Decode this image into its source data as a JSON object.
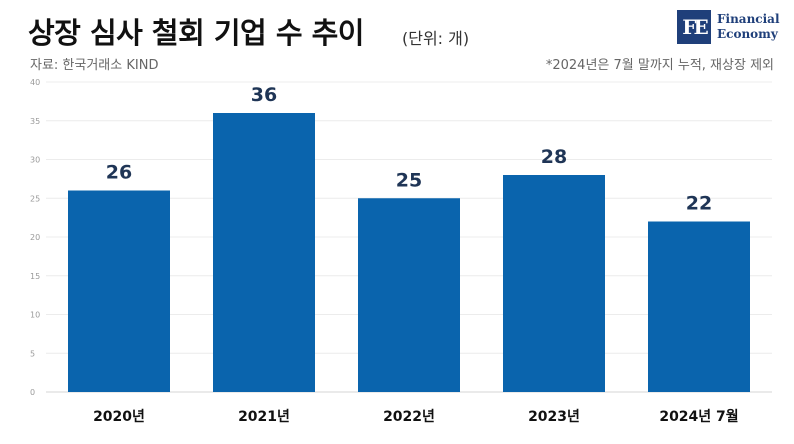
{
  "header": {
    "title": "상장 심사 철회 기업 수 추이",
    "unit": "(단위: 개)",
    "source": "자료: 한국거래소 KIND",
    "note": "*2024년은 7월 말까지 누적, 재상장 제외"
  },
  "logo": {
    "mark": "FE",
    "line1": "Financial",
    "line2": "Economy",
    "color": "#1f3f7a"
  },
  "chart_data": {
    "type": "bar",
    "categories": [
      "2020년",
      "2021년",
      "2022년",
      "2023년",
      "2024년 7월"
    ],
    "values": [
      26,
      36,
      25,
      28,
      22
    ],
    "ylim": [
      0,
      40
    ],
    "yticks": [
      0,
      5,
      10,
      15,
      20,
      25,
      30,
      35,
      40
    ],
    "grid": true,
    "bar_color": "#0a64ad",
    "legend": "none"
  }
}
